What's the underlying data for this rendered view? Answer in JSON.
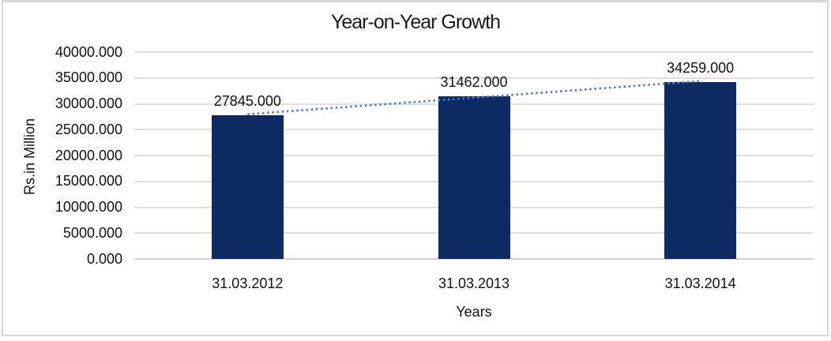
{
  "colors": {
    "bar_fill": "#0D2A63",
    "trendline": "#4F81BD",
    "gridline": "#DEDEDE",
    "axis_line": "#D2D2D2",
    "frame_border": "#D8D8D8",
    "text": "#111111",
    "background": "#FFFFFF"
  },
  "chart_data": {
    "type": "bar",
    "title": "Year-on-Year Growth",
    "xlabel": "Years",
    "ylabel": "Rs.in Million",
    "categories": [
      "31.03.2012",
      "31.03.2013",
      "31.03.2014"
    ],
    "values": [
      27845,
      31462,
      34259
    ],
    "data_labels": [
      "27845.000",
      "31462.000",
      "34259.000"
    ],
    "y_ticks": [
      "40000.000",
      "35000.000",
      "30000.000",
      "25000.000",
      "20000.000",
      "15000.000",
      "10000.000",
      "5000.000",
      "0.000"
    ],
    "ylim": [
      0,
      40000
    ],
    "y_step": 5000,
    "grid": true,
    "legend": "none",
    "trendline": {
      "type": "linear",
      "style": "dotted",
      "color": "#4F81BD"
    }
  }
}
